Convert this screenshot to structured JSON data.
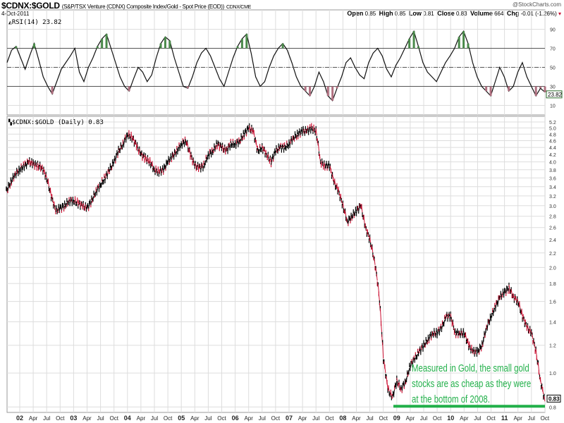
{
  "header": {
    "symbol": "$CDNX:$GOLD",
    "description": "(S&P/TSX Venture (CDNX) Composite Index/Gold - Spot Price (EOD))",
    "exchange": "CDNX/CME",
    "date": "4-Oct-2011",
    "watermark": "@StockCharts.com",
    "quote": {
      "open_label": "Open",
      "open": "0.85",
      "high_label": "High",
      "high": "0.85",
      "low_label": "Low",
      "low": "0.81",
      "close_label": "Close",
      "close": "0.83",
      "volume_label": "Volume",
      "volume": "664",
      "chg_label": "Chg",
      "chg": "-0.01 (-1.26%)"
    }
  },
  "colors": {
    "up": "#000000",
    "down": "#cc1133",
    "annotation": "#22b04a",
    "grid": "#dddddd"
  },
  "chart_data": [
    {
      "type": "line",
      "title": "RSI(14) 23.82",
      "ylabel": "RSI",
      "ylim": [
        0,
        100
      ],
      "yticks": [
        "90",
        "70",
        "50",
        "30",
        "10"
      ],
      "reference_lines": [
        70,
        50,
        30
      ],
      "last_value_label": "23.82",
      "values": [
        55,
        68,
        72,
        60,
        48,
        62,
        75,
        58,
        40,
        30,
        22,
        35,
        48,
        55,
        62,
        70,
        45,
        35,
        50,
        60,
        72,
        80,
        85,
        70,
        55,
        40,
        30,
        25,
        38,
        50,
        45,
        35,
        42,
        60,
        75,
        82,
        78,
        60,
        45,
        30,
        28,
        40,
        55,
        65,
        70,
        62,
        50,
        38,
        30,
        45,
        60,
        72,
        80,
        85,
        65,
        40,
        30,
        35,
        50,
        62,
        70,
        75,
        68,
        55,
        40,
        30,
        25,
        20,
        30,
        45,
        35,
        20,
        15,
        28,
        40,
        55,
        60,
        50,
        42,
        38,
        55,
        65,
        70,
        62,
        48,
        40,
        52,
        60,
        70,
        80,
        88,
        72,
        55,
        45,
        40,
        35,
        45,
        55,
        62,
        70,
        82,
        88,
        75,
        55,
        40,
        30,
        25,
        20,
        35,
        50,
        40,
        25,
        30,
        45,
        55,
        40,
        30,
        20,
        28,
        23.82
      ]
    },
    {
      "type": "line",
      "title": "$CDNX:$GOLD (Daily) 0.83",
      "scale": "log",
      "ylim": [
        0.8,
        5.2
      ],
      "yticks": [
        "5.2",
        "5.0",
        "4.8",
        "4.6",
        "4.4",
        "4.2",
        "4.0",
        "3.8",
        "3.6",
        "3.4",
        "3.2",
        "3.0",
        "2.8",
        "2.6",
        "2.4",
        "2.2",
        "2.0",
        "1.8",
        "1.6",
        "1.4",
        "1.2",
        "1.0",
        "0.8"
      ],
      "last_value_label": "0.83",
      "x_start": "Oct 2001",
      "x_end": "Oct 2011",
      "x_interval": "monthly",
      "xticks": [
        "02",
        "Apr",
        "Jul",
        "Oct",
        "03",
        "Apr",
        "Jul",
        "Oct",
        "04",
        "Apr",
        "Jul",
        "Oct",
        "05",
        "Apr",
        "Jul",
        "Oct",
        "06",
        "Apr",
        "Jul",
        "Oct",
        "07",
        "Apr",
        "Jul",
        "Oct",
        "08",
        "Apr",
        "Jul",
        "Oct",
        "09",
        "Apr",
        "Jul",
        "Oct",
        "10",
        "Apr",
        "Jul",
        "Oct",
        "11",
        "Apr",
        "Jul",
        "Oct"
      ],
      "values": [
        3.3,
        3.5,
        3.7,
        3.8,
        3.9,
        4.0,
        3.95,
        3.9,
        3.85,
        3.6,
        3.2,
        2.9,
        2.95,
        3.0,
        3.1,
        3.1,
        3.05,
        3.0,
        2.95,
        3.1,
        3.3,
        3.45,
        3.6,
        3.8,
        4.0,
        4.3,
        4.5,
        4.8,
        4.7,
        4.45,
        4.2,
        4.1,
        4.0,
        3.8,
        3.75,
        3.8,
        4.0,
        4.15,
        4.3,
        4.5,
        4.6,
        4.2,
        3.9,
        3.85,
        3.9,
        4.2,
        4.3,
        4.5,
        4.4,
        4.3,
        4.5,
        4.5,
        4.6,
        4.8,
        5.0,
        4.9,
        4.3,
        4.4,
        4.2,
        4.0,
        4.3,
        4.4,
        4.4,
        4.5,
        4.7,
        4.8,
        4.9,
        4.9,
        5.0,
        4.9,
        4.0,
        3.9,
        3.9,
        3.5,
        3.3,
        3.0,
        2.7,
        2.8,
        2.9,
        3.0,
        2.6,
        2.4,
        2.1,
        1.7,
        1.1,
        0.9,
        0.85,
        0.95,
        0.9,
        0.95,
        1.05,
        1.1,
        1.15,
        1.2,
        1.25,
        1.3,
        1.3,
        1.35,
        1.45,
        1.45,
        1.3,
        1.3,
        1.3,
        1.2,
        1.15,
        1.15,
        1.2,
        1.35,
        1.45,
        1.55,
        1.65,
        1.7,
        1.75,
        1.65,
        1.6,
        1.45,
        1.35,
        1.3,
        1.15,
        0.95,
        0.83
      ],
      "support_line": 0.8
    }
  ],
  "annotation": {
    "lines": [
      "Measured in Gold, the small gold",
      "stocks are as cheap as they were",
      "at the bottom of 2008."
    ]
  }
}
